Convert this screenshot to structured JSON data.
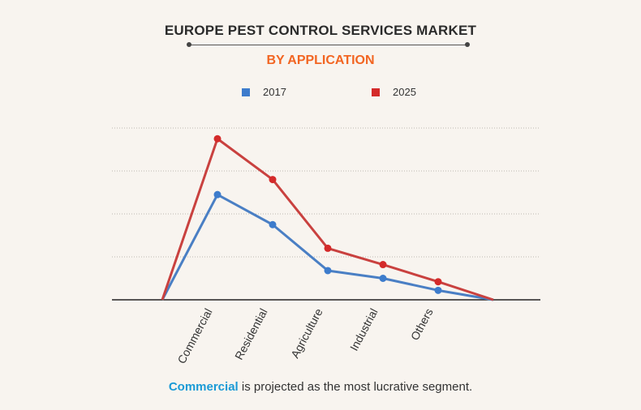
{
  "header": {
    "title": "EUROPE PEST CONTROL SERVICES MARKET",
    "subtitle": "BY APPLICATION"
  },
  "footnote": {
    "highlight": "Commercial",
    "rest": " is projected as the most lucrative segment."
  },
  "colors": {
    "series_2017": "#4a7fc4",
    "series_2025": "#c9413f",
    "point_2017": "#3d7ccc",
    "point_2025": "#d42a2a",
    "subtitle": "#f26522",
    "highlight": "#1a9ad6"
  },
  "chart_data": {
    "type": "line",
    "categories": [
      "Commercial",
      "Residential",
      "Agriculture",
      "Industrial",
      "Others"
    ],
    "series": [
      {
        "name": "2017",
        "values": [
          2.45,
          1.75,
          0.68,
          0.5,
          0.22
        ]
      },
      {
        "name": "2025",
        "values": [
          3.75,
          2.8,
          1.2,
          0.82,
          0.42
        ]
      }
    ],
    "ylim": [
      0,
      4
    ],
    "grid": true,
    "legend_position": "top",
    "xlabel": "",
    "ylabel": ""
  }
}
